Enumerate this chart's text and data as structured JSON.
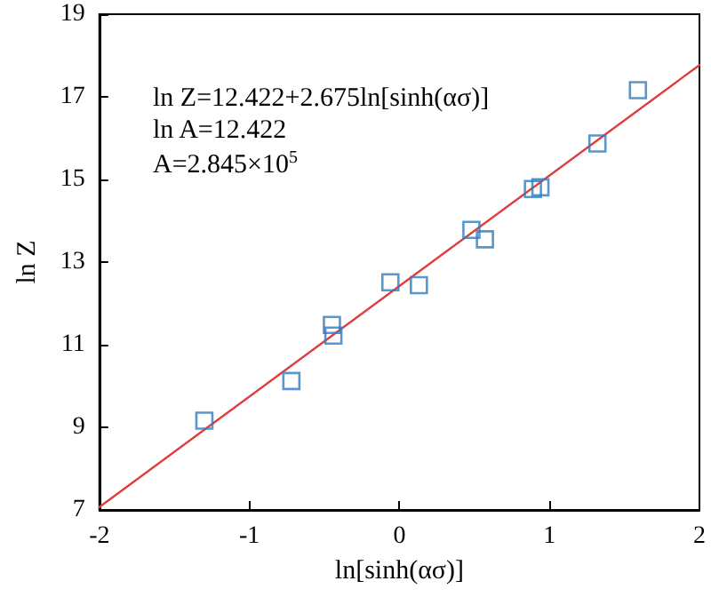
{
  "chart_data": {
    "type": "scatter",
    "xlabel": "ln[sinh(ασ)]",
    "ylabel": "ln Z",
    "annotations": [
      "ln Z=12.422+2.675ln[sinh(ασ)]",
      "ln A=12.422",
      "A=2.845×10$^{5}$"
    ],
    "xlim": [
      -2,
      2
    ],
    "xticks": [
      -2,
      -1,
      0,
      1,
      2
    ],
    "ylim": [
      7,
      19
    ],
    "yticks": [
      7,
      9,
      11,
      13,
      15,
      17,
      19
    ],
    "grid": false,
    "marker": "square",
    "series": [
      {
        "color": "#2e7dbf",
        "x": [
          -1.3,
          -0.72,
          -0.45,
          -0.44,
          -0.06,
          0.13,
          0.48,
          0.57,
          0.89,
          0.94,
          1.32,
          1.59
        ],
        "values": [
          9.16,
          10.12,
          11.48,
          11.22,
          12.51,
          12.44,
          13.78,
          13.55,
          14.77,
          14.81,
          15.87,
          17.16
        ]
      },
      {
        "type": "line",
        "color": "#e03c3c",
        "marker": "none",
        "line_style": "solid",
        "x": [
          -2,
          2
        ],
        "values": [
          7.07,
          17.77
        ]
      }
    ]
  }
}
